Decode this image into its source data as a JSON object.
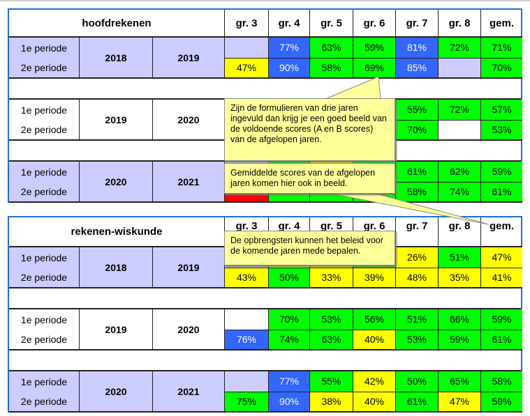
{
  "colors": {
    "blue": "#3366ff",
    "green": "#00ff00",
    "yellow": "#ffff00",
    "lavender": "#ccccff",
    "white": "#ffffff",
    "red": "#ff0000"
  },
  "tables": [
    {
      "title": "hoofdrekenen",
      "headers": [
        "gr. 3",
        "gr. 4",
        "gr. 5",
        "gr. 6",
        "gr. 7",
        "gr. 8",
        "gem."
      ],
      "blocks": [
        {
          "bg": "lavender",
          "year_from": "2018",
          "year_to": "2019",
          "rows": [
            {
              "label": "1e periode",
              "cells": [
                [
                  "",
                  "lavender"
                ],
                [
                  "77%",
                  "blue"
                ],
                [
                  "63%",
                  "green"
                ],
                [
                  "59%",
                  "green"
                ],
                [
                  "81%",
                  "blue"
                ],
                [
                  "72%",
                  "green"
                ],
                [
                  "71%",
                  "green"
                ]
              ]
            },
            {
              "label": "2e periode",
              "cells": [
                [
                  "47%",
                  "yellow"
                ],
                [
                  "90%",
                  "blue"
                ],
                [
                  "58%",
                  "green"
                ],
                [
                  "69%",
                  "green"
                ],
                [
                  "85%",
                  "blue"
                ],
                [
                  "",
                  "lavender"
                ],
                [
                  "70%",
                  "green"
                ]
              ]
            }
          ]
        },
        {
          "bg": "white",
          "year_from": "2019",
          "year_to": "2020",
          "rows": [
            {
              "label": "1e periode",
              "cells": [
                [
                  "",
                  "white"
                ],
                [
                  "",
                  "green"
                ],
                [
                  "",
                  "green"
                ],
                [
                  "",
                  "green"
                ],
                [
                  "55%",
                  "green"
                ],
                [
                  "72%",
                  "green"
                ],
                [
                  "57%",
                  "green"
                ]
              ]
            },
            {
              "label": "2e periode",
              "cells": [
                [
                  "",
                  "white"
                ],
                [
                  "",
                  "green"
                ],
                [
                  "",
                  "green"
                ],
                [
                  "",
                  "green"
                ],
                [
                  "70%",
                  "green"
                ],
                [
                  "",
                  "white"
                ],
                [
                  "53%",
                  "green"
                ]
              ]
            }
          ]
        },
        {
          "bg": "lavender",
          "year_from": "2020",
          "year_to": "2021",
          "rows": [
            {
              "label": "1e periode",
              "cells": [
                [
                  "",
                  "lavender"
                ],
                [
                  "",
                  "green"
                ],
                [
                  "",
                  "yellow"
                ],
                [
                  "",
                  "green"
                ],
                [
                  "61%",
                  "green"
                ],
                [
                  "62%",
                  "green"
                ],
                [
                  "59%",
                  "green"
                ]
              ]
            },
            {
              "label": "2e periode",
              "cells": [
                [
                  "",
                  "red"
                ],
                [
                  "",
                  "green"
                ],
                [
                  "",
                  "green"
                ],
                [
                  "",
                  "green"
                ],
                [
                  "58%",
                  "green"
                ],
                [
                  "74%",
                  "green"
                ],
                [
                  "61%",
                  "green"
                ]
              ]
            }
          ]
        }
      ]
    },
    {
      "title": "rekenen-wiskunde",
      "headers": [
        "gr. 3",
        "gr. 4",
        "gr. 5",
        "gr. 6",
        "gr. 7",
        "gr. 8",
        "gem."
      ],
      "blocks": [
        {
          "bg": "lavender",
          "year_from": "2018",
          "year_to": "2019",
          "rows": [
            {
              "label": "1e periode",
              "cells": [
                [
                  "",
                  "lavender"
                ],
                [
                  "",
                  "yellow"
                ],
                [
                  "",
                  "yellow"
                ],
                [
                  "",
                  "green"
                ],
                [
                  "26%",
                  "yellow"
                ],
                [
                  "51%",
                  "green"
                ],
                [
                  "47%",
                  "yellow"
                ]
              ]
            },
            {
              "label": "2e periode",
              "cells": [
                [
                  "43%",
                  "yellow"
                ],
                [
                  "50%",
                  "green"
                ],
                [
                  "33%",
                  "yellow"
                ],
                [
                  "39%",
                  "yellow"
                ],
                [
                  "48%",
                  "yellow"
                ],
                [
                  "35%",
                  "yellow"
                ],
                [
                  "41%",
                  "yellow"
                ]
              ]
            }
          ]
        },
        {
          "bg": "white",
          "year_from": "2019",
          "year_to": "2020",
          "rows": [
            {
              "label": "1e periode",
              "cells": [
                [
                  "",
                  "white"
                ],
                [
                  "70%",
                  "green"
                ],
                [
                  "53%",
                  "green"
                ],
                [
                  "56%",
                  "green"
                ],
                [
                  "51%",
                  "green"
                ],
                [
                  "66%",
                  "green"
                ],
                [
                  "59%",
                  "green"
                ]
              ]
            },
            {
              "label": "2e periode",
              "cells": [
                [
                  "76%",
                  "blue"
                ],
                [
                  "74%",
                  "green"
                ],
                [
                  "63%",
                  "green"
                ],
                [
                  "40%",
                  "yellow"
                ],
                [
                  "53%",
                  "green"
                ],
                [
                  "59%",
                  "green"
                ],
                [
                  "61%",
                  "green"
                ]
              ]
            }
          ]
        },
        {
          "bg": "lavender",
          "year_from": "2020",
          "year_to": "2021",
          "rows": [
            {
              "label": "1e periode",
              "cells": [
                [
                  "",
                  "lavender"
                ],
                [
                  "77%",
                  "blue"
                ],
                [
                  "55%",
                  "green"
                ],
                [
                  "42%",
                  "yellow"
                ],
                [
                  "50%",
                  "green"
                ],
                [
                  "65%",
                  "green"
                ],
                [
                  "58%",
                  "green"
                ]
              ]
            },
            {
              "label": "2e periode",
              "cells": [
                [
                  "75%",
                  "green"
                ],
                [
                  "90%",
                  "blue"
                ],
                [
                  "38%",
                  "yellow"
                ],
                [
                  "40%",
                  "yellow"
                ],
                [
                  "61%",
                  "green"
                ],
                [
                  "47%",
                  "yellow"
                ],
                [
                  "59%",
                  "green"
                ]
              ]
            }
          ]
        }
      ]
    }
  ],
  "callouts": [
    "Zijn de formulieren van drie jaren ingevuld dan krijg je een goed beeld van de voldoende scores (A en B scores) van de afgelopen jaren.",
    "Gemiddelde scores van de afgelopen jaren komen hier ook in beeld.",
    "De opbrengsten kunnen het beleid voor de komende jaren mede bepalen."
  ]
}
